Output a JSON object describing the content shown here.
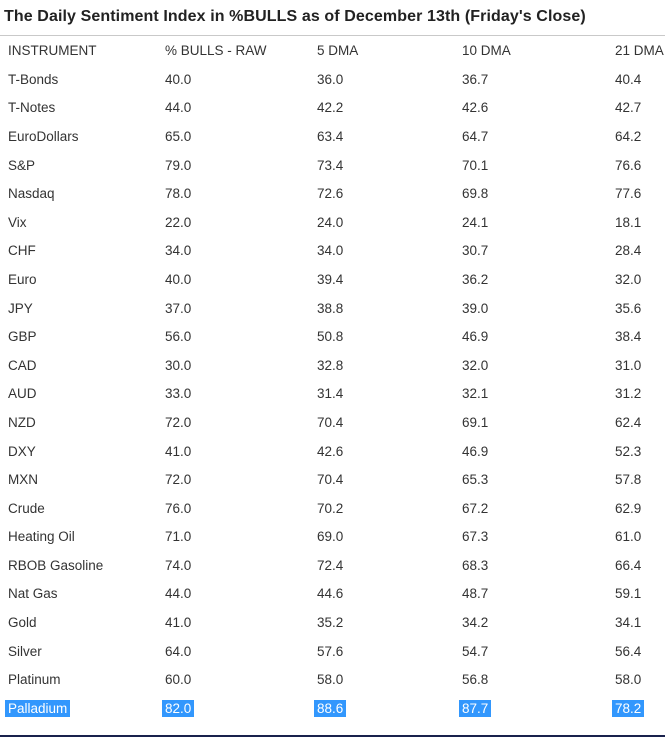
{
  "title": "The Daily Sentiment Index in %BULLS as of December 13th (Friday's Close)",
  "colors": {
    "highlight_bg": "#3297fd",
    "highlight_text": "#ffffff",
    "body_text": "#333333",
    "divider": "#c9c9c9",
    "bottom_bar": "#19214c"
  },
  "chart_data": {
    "type": "table",
    "title": "The Daily Sentiment Index in %BULLS as of December 13th (Friday's Close)",
    "columns": [
      "INSTRUMENT",
      "% BULLS - RAW",
      "5 DMA",
      "10 DMA",
      "21 DMA"
    ],
    "rows": [
      {
        "instrument": "T-Bonds",
        "raw": "40.0",
        "dma5": "36.0",
        "dma10": "36.7",
        "dma21": "40.4",
        "highlighted": false
      },
      {
        "instrument": "T-Notes",
        "raw": "44.0",
        "dma5": "42.2",
        "dma10": "42.6",
        "dma21": "42.7",
        "highlighted": false
      },
      {
        "instrument": "EuroDollars",
        "raw": "65.0",
        "dma5": "63.4",
        "dma10": "64.7",
        "dma21": "64.2",
        "highlighted": false
      },
      {
        "instrument": "S&P",
        "raw": "79.0",
        "dma5": "73.4",
        "dma10": "70.1",
        "dma21": "76.6",
        "highlighted": false
      },
      {
        "instrument": "Nasdaq",
        "raw": "78.0",
        "dma5": "72.6",
        "dma10": "69.8",
        "dma21": "77.6",
        "highlighted": false
      },
      {
        "instrument": "Vix",
        "raw": "22.0",
        "dma5": "24.0",
        "dma10": "24.1",
        "dma21": "18.1",
        "highlighted": false
      },
      {
        "instrument": "CHF",
        "raw": "34.0",
        "dma5": "34.0",
        "dma10": "30.7",
        "dma21": "28.4",
        "highlighted": false
      },
      {
        "instrument": "Euro",
        "raw": "40.0",
        "dma5": "39.4",
        "dma10": "36.2",
        "dma21": "32.0",
        "highlighted": false
      },
      {
        "instrument": "JPY",
        "raw": "37.0",
        "dma5": "38.8",
        "dma10": "39.0",
        "dma21": "35.6",
        "highlighted": false
      },
      {
        "instrument": "GBP",
        "raw": "56.0",
        "dma5": "50.8",
        "dma10": "46.9",
        "dma21": "38.4",
        "highlighted": false
      },
      {
        "instrument": "CAD",
        "raw": "30.0",
        "dma5": "32.8",
        "dma10": "32.0",
        "dma21": "31.0",
        "highlighted": false
      },
      {
        "instrument": "AUD",
        "raw": "33.0",
        "dma5": "31.4",
        "dma10": "32.1",
        "dma21": "31.2",
        "highlighted": false
      },
      {
        "instrument": "NZD",
        "raw": "72.0",
        "dma5": "70.4",
        "dma10": "69.1",
        "dma21": "62.4",
        "highlighted": false
      },
      {
        "instrument": "DXY",
        "raw": "41.0",
        "dma5": "42.6",
        "dma10": "46.9",
        "dma21": "52.3",
        "highlighted": false
      },
      {
        "instrument": "MXN",
        "raw": "72.0",
        "dma5": "70.4",
        "dma10": "65.3",
        "dma21": "57.8",
        "highlighted": false
      },
      {
        "instrument": "Crude",
        "raw": "76.0",
        "dma5": "70.2",
        "dma10": "67.2",
        "dma21": "62.9",
        "highlighted": false
      },
      {
        "instrument": "Heating Oil",
        "raw": "71.0",
        "dma5": "69.0",
        "dma10": "67.3",
        "dma21": "61.0",
        "highlighted": false
      },
      {
        "instrument": "RBOB Gasoline",
        "raw": "74.0",
        "dma5": "72.4",
        "dma10": "68.3",
        "dma21": "66.4",
        "highlighted": false
      },
      {
        "instrument": "Nat Gas",
        "raw": "44.0",
        "dma5": "44.6",
        "dma10": "48.7",
        "dma21": "59.1",
        "highlighted": false
      },
      {
        "instrument": "Gold",
        "raw": "41.0",
        "dma5": "35.2",
        "dma10": "34.2",
        "dma21": "34.1",
        "highlighted": false
      },
      {
        "instrument": "Silver",
        "raw": "64.0",
        "dma5": "57.6",
        "dma10": "54.7",
        "dma21": "56.4",
        "highlighted": false
      },
      {
        "instrument": "Platinum",
        "raw": "60.0",
        "dma5": "58.0",
        "dma10": "56.8",
        "dma21": "58.0",
        "highlighted": false
      },
      {
        "instrument": "Palladium",
        "raw": "82.0",
        "dma5": "88.6",
        "dma10": "87.7",
        "dma21": "78.2",
        "highlighted": true
      }
    ]
  }
}
